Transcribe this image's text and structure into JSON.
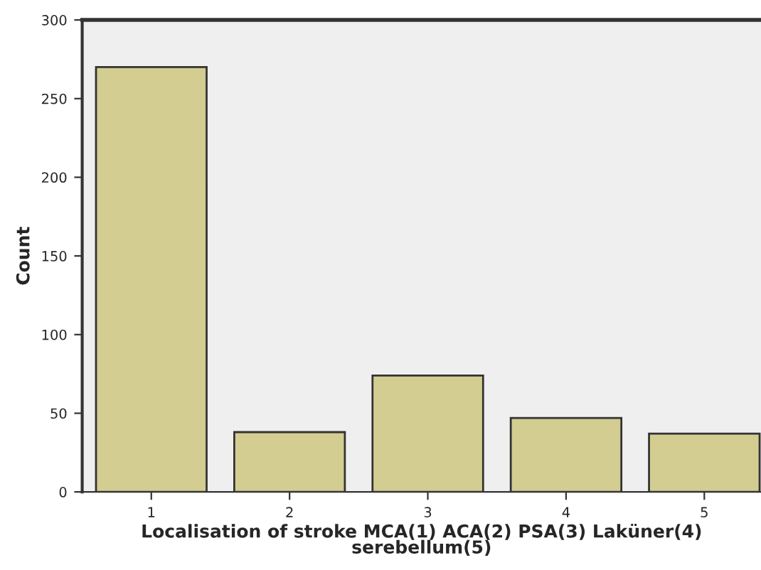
{
  "chart_data": {
    "type": "bar",
    "xlabel": "Localisation of stroke MCA(1) ACA(2) PSA(3) Laküner(4) serebellum(5)",
    "ylabel": "Count",
    "categories": [
      "1",
      "2",
      "3",
      "4",
      "5"
    ],
    "values": [
      270,
      38,
      74,
      47,
      37
    ],
    "color": "#d3cd92",
    "ylim": [
      0,
      300
    ],
    "yticks": [
      0,
      50,
      100,
      150,
      200,
      250,
      300
    ],
    "grid": false
  }
}
